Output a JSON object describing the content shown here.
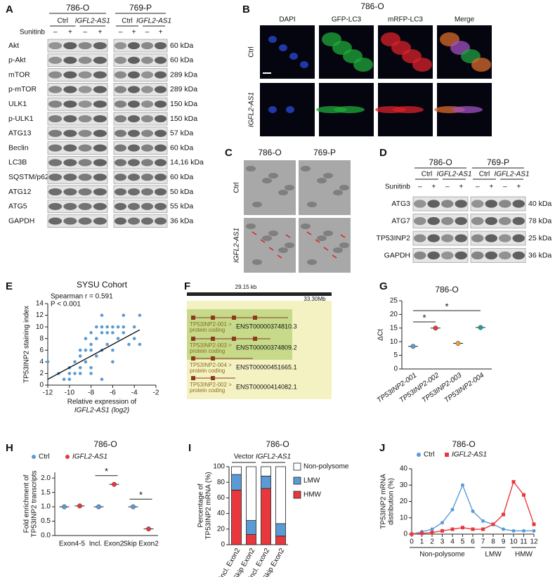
{
  "panel_labels": [
    "A",
    "B",
    "C",
    "D",
    "E",
    "F",
    "G",
    "H",
    "I",
    "J"
  ],
  "panel_a": {
    "cell_lines": [
      "786-O",
      "769-P"
    ],
    "groups": [
      "Ctrl",
      "IGFL2-AS1"
    ],
    "treatment": "Sunitinb",
    "signs": [
      "–",
      "+"
    ],
    "rows": [
      {
        "protein": "Akt",
        "size": "60 kDa"
      },
      {
        "protein": "p-Akt",
        "size": "60 kDa"
      },
      {
        "protein": "mTOR",
        "size": "289 kDa"
      },
      {
        "protein": "p-mTOR",
        "size": "289 kDa"
      },
      {
        "protein": "ULK1",
        "size": "150 kDa"
      },
      {
        "protein": "p-ULK1",
        "size": "150 kDa"
      },
      {
        "protein": "ATG13",
        "size": "57 kDa"
      },
      {
        "protein": "Beclin",
        "size": "60 kDa"
      },
      {
        "protein": "LC3B",
        "size": "14,16 kDa"
      },
      {
        "protein": "SQSTM/p62",
        "size": "60 kDa"
      },
      {
        "protein": "ATG12",
        "size": "50 kDa"
      },
      {
        "protein": "ATG5",
        "size": "55 kDa"
      },
      {
        "protein": "GAPDH",
        "size": "36 kDa"
      }
    ]
  },
  "panel_b": {
    "title": "786-O",
    "columns": [
      "DAPI",
      "GFP-LC3",
      "mRFP-LC3",
      "Merge"
    ],
    "rows": [
      "Ctrl",
      "IGFL2-AS1"
    ]
  },
  "panel_c": {
    "columns": [
      "786-O",
      "769-P"
    ],
    "rows": [
      "Ctrl",
      "IGFL2-AS1"
    ]
  },
  "panel_d": {
    "cell_lines": [
      "786-O",
      "769-P"
    ],
    "groups": [
      "Ctrl",
      "IGFL2-AS1"
    ],
    "treatment": "Sunitinb",
    "signs": [
      "–",
      "+"
    ],
    "rows": [
      {
        "protein": "ATG3",
        "size": "40 kDa"
      },
      {
        "protein": "ATG7",
        "size": "78 kDa"
      },
      {
        "protein": "TP53INP2",
        "size": "25 kDa"
      },
      {
        "protein": "GAPDH",
        "size": "36 kDa"
      }
    ]
  },
  "panel_f": {
    "length": "29.15 kb",
    "position": "33.30Mb",
    "transcripts": [
      {
        "name": "TP53INP2-001 >",
        "biotype": "protein coding",
        "id": "ENST00000374810.3"
      },
      {
        "name": "TP53INP2-003 >",
        "biotype": "protein coding",
        "id": "ENST00000374809.2"
      },
      {
        "name": "TP53INP2-004 >",
        "biotype": "protein coding",
        "id": "ENST00000451665.1"
      },
      {
        "name": "TP53INP2-002 >",
        "biotype": "protein coding",
        "id": "ENST00000414082.1"
      }
    ]
  },
  "chart_data": [
    {
      "type": "scatter",
      "title": "SYSU Cohort",
      "annotations": [
        "Spearman r = 0.591",
        "P < 0.001"
      ],
      "ylabel": "TP53INP2 staining index",
      "xlabel": [
        "Relative expression of",
        "IGFL2-AS1 (log2)"
      ],
      "x": [
        -12,
        -11,
        -10.5,
        -10,
        -10,
        -9.5,
        -9.5,
        -9,
        -9,
        -9,
        -8.5,
        -8.5,
        -8.5,
        -8,
        -8,
        -8,
        -8,
        -7.5,
        -7.5,
        -7.5,
        -7,
        -7,
        -7,
        -7,
        -6.5,
        -6.5,
        -6.5,
        -6,
        -6,
        -6,
        -6,
        -5.5,
        -5.5,
        -5,
        -5,
        -5,
        -4.5,
        -4,
        -4,
        -3.5,
        -3.5,
        -10,
        -9,
        -8,
        -7
      ],
      "y": [
        4,
        2,
        1,
        2,
        3,
        2,
        4,
        5,
        3,
        6,
        4,
        6,
        8,
        3,
        6,
        7,
        9,
        5,
        8,
        10,
        6,
        9,
        10,
        12,
        7,
        9,
        10,
        4,
        6,
        9,
        10,
        8,
        10,
        9,
        10,
        12,
        7,
        8,
        10,
        12,
        7,
        1,
        2,
        2,
        1
      ],
      "color": "#5b9bd5",
      "fit_line": {
        "x": [
          -12,
          -3.5
        ],
        "y": [
          1,
          9.5
        ],
        "color": "#000000"
      },
      "xlim": [
        -12,
        -2
      ],
      "xticks": [
        -12,
        -10,
        -8,
        -6,
        -4,
        -2
      ],
      "ylim": [
        0,
        14
      ],
      "yticks": [
        0,
        2,
        4,
        6,
        8,
        10,
        12,
        14
      ]
    },
    {
      "type": "dot",
      "title": "786-O",
      "ylabel": "ΔCt",
      "categories": [
        "TP53INP2-001",
        "TP53INP2-002",
        "TP53INP2-003",
        "TP53INP2-004"
      ],
      "values": [
        8.3,
        15.0,
        9.4,
        15.2
      ],
      "errors": [
        0.3,
        0.5,
        0.3,
        0.5
      ],
      "colors": [
        "#5b9bd5",
        "#e8383d",
        "#f0a030",
        "#1aa39a"
      ],
      "annotations": [
        "*",
        "*"
      ],
      "ylim": [
        0,
        25
      ],
      "yticks": [
        0,
        5,
        10,
        15,
        20,
        25
      ]
    },
    {
      "type": "dot",
      "title": "786-O",
      "ylabel": [
        "Fold enrichment of",
        "TP53INP2 transcripts"
      ],
      "categories": [
        "Exon4-5",
        "Incl. Exon2",
        "Skip Exon2"
      ],
      "series": [
        {
          "name": "Ctrl",
          "color": "#5b9bd5",
          "values": [
            1,
            1,
            1
          ],
          "errors": [
            0.02,
            0.02,
            0.02
          ]
        },
        {
          "name": "IGFL2-AS1",
          "color": "#e8383d",
          "values": [
            1.03,
            1.78,
            0.23
          ],
          "errors": [
            0.05,
            0.06,
            0.04
          ]
        }
      ],
      "annotations": [
        "*",
        "*"
      ],
      "ylim": [
        0,
        2.2
      ],
      "yticks": [
        {
          "value": 0,
          "label": "0.0"
        },
        {
          "value": 0.5,
          "label": "0.5"
        },
        {
          "value": 1,
          "label": "1.0"
        },
        {
          "value": 1.5,
          "label": "1.5"
        },
        {
          "value": 2,
          "label": "2.0"
        }
      ]
    },
    {
      "type": "bar",
      "stacked": true,
      "title": "786-O",
      "ylabel": [
        "Percentage of",
        "TP53INP2 mRNA (%)"
      ],
      "groups": [
        "Vector",
        "IGFL2-AS1"
      ],
      "categories": [
        "Incl. Exon2",
        "Skip Exon2",
        "Incl. Exon2",
        "Skip Exon2"
      ],
      "series": [
        {
          "name": "HMW",
          "color": "#e8383d",
          "values": [
            70,
            13,
            72,
            11
          ]
        },
        {
          "name": "LMW",
          "color": "#5b9bd5",
          "values": [
            20,
            18,
            16,
            16
          ]
        },
        {
          "name": "Non-polysome",
          "color": "#ffffff",
          "values": [
            10,
            69,
            12,
            73
          ]
        }
      ],
      "ylim": [
        0,
        100
      ],
      "yticks": [
        0,
        20,
        40,
        60,
        80,
        100
      ]
    },
    {
      "type": "line",
      "title": "786-O",
      "ylabel": [
        "TP53INP2 mRNA",
        "distribution (%)"
      ],
      "x": [
        0,
        1,
        2,
        3,
        4,
        5,
        6,
        7,
        8,
        9,
        10,
        11,
        12
      ],
      "groups": [
        "Non-polysome",
        "LMW",
        "HMW"
      ],
      "series": [
        {
          "name": "Ctrl",
          "color": "#5b9bd5",
          "values": [
            0,
            1.5,
            3,
            7,
            15,
            30,
            14,
            8,
            6,
            3,
            2,
            2,
            2
          ]
        },
        {
          "name": "IGFL2-AS1",
          "color": "#e8383d",
          "values": [
            0,
            0.5,
            1,
            2,
            3,
            4,
            3,
            3,
            6,
            12,
            32,
            24,
            6
          ]
        }
      ],
      "xlim": [
        0,
        12
      ],
      "xticks": [
        0,
        1,
        2,
        3,
        4,
        5,
        6,
        7,
        8,
        9,
        10,
        11,
        12
      ],
      "ylim": [
        0,
        40
      ],
      "yticks": [
        0,
        10,
        20,
        30,
        40
      ]
    }
  ]
}
